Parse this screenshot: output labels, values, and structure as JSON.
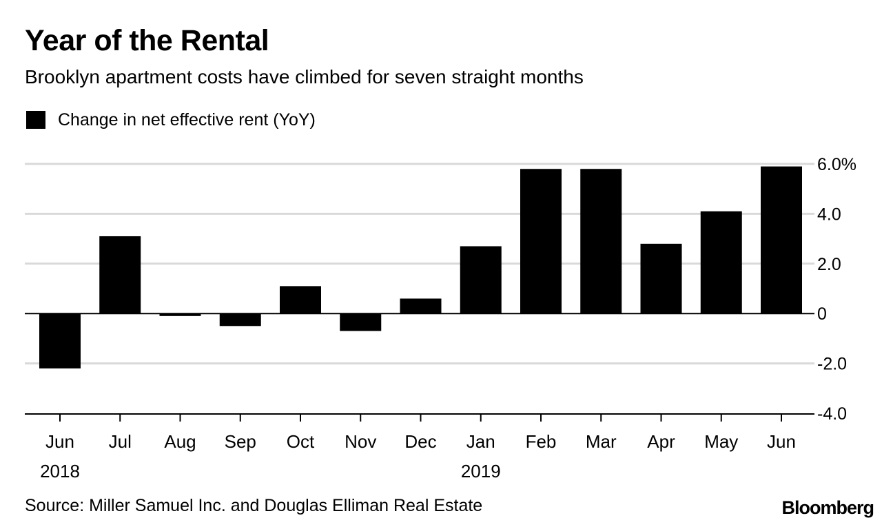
{
  "chart_data": {
    "type": "bar",
    "title": "Year of the Rental",
    "subtitle": "Brooklyn apartment costs have climbed for seven straight months",
    "legend": [
      {
        "name": "Change in net effective rent (YoY)",
        "color": "#000000"
      }
    ],
    "categories": [
      "Jun",
      "Jul",
      "Aug",
      "Sep",
      "Oct",
      "Nov",
      "Dec",
      "Jan",
      "Feb",
      "Mar",
      "Apr",
      "May",
      "Jun"
    ],
    "year_labels": [
      "2018",
      "",
      "",
      "",
      "",
      "",
      "",
      "2019",
      "",
      "",
      "",
      "",
      ""
    ],
    "series": [
      {
        "name": "Change in net effective rent (YoY)",
        "values": [
          -2.2,
          3.1,
          -0.1,
          -0.5,
          1.1,
          -0.7,
          0.6,
          2.7,
          5.8,
          5.8,
          2.8,
          4.1,
          5.9
        ]
      }
    ],
    "ylim": [
      -4,
      6
    ],
    "yticks": [
      6,
      4,
      2,
      0,
      -2,
      -4
    ],
    "ytick_labels": [
      "6.0%",
      "4.0",
      "2.0",
      "0",
      "-2.0",
      "-4.0"
    ],
    "grid": true,
    "y_axis_side": "right",
    "xlabel": "",
    "ylabel": ""
  },
  "source": "Source: Miller Samuel Inc. and Douglas Elliman Real Estate",
  "brand": "Bloomberg",
  "colors": {
    "bar": "#000000",
    "grid": "#d9d9d9",
    "axis": "#000000",
    "text": "#000000"
  }
}
